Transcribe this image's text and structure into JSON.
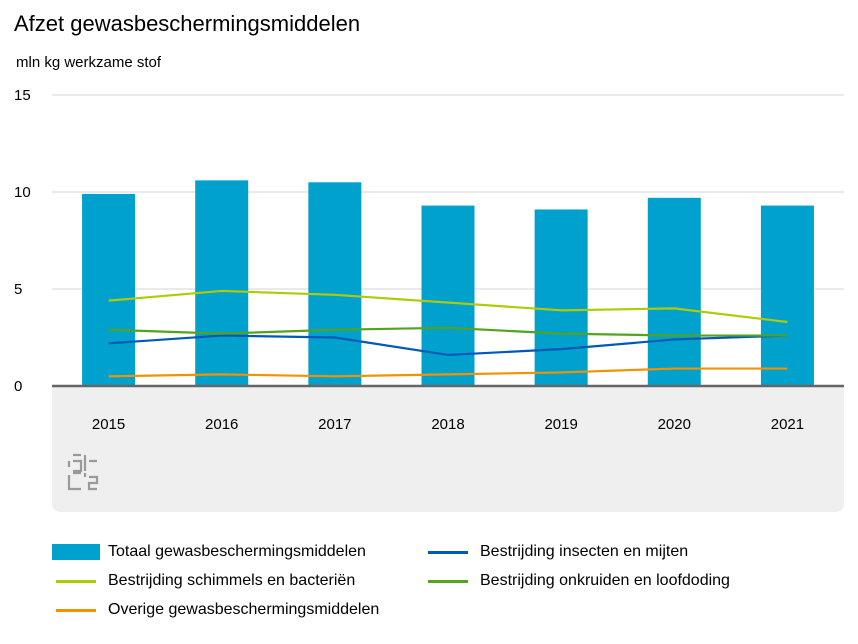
{
  "title": "Afzet gewasbeschermingsmiddelen",
  "unit": "mln kg werkzame stof",
  "logo": "cbs",
  "chart_data": {
    "type": "bar",
    "categories": [
      "2015",
      "2016",
      "2017",
      "2018",
      "2019",
      "2020",
      "2021"
    ],
    "ylim": [
      0,
      15
    ],
    "yticks": [
      "0",
      "5",
      "10",
      "15"
    ],
    "grid": true,
    "legend_position": "bottom",
    "series": [
      {
        "name": "Totaal gewasbeschermingsmiddelen",
        "kind": "bar",
        "color": "#00a1cd",
        "values": [
          9.9,
          10.6,
          10.5,
          9.3,
          9.1,
          9.7,
          9.3
        ]
      },
      {
        "name": "Bestrijding insecten en mijten",
        "kind": "line",
        "color": "#0058b8",
        "values": [
          2.2,
          2.6,
          2.5,
          1.6,
          1.9,
          2.4,
          2.6
        ]
      },
      {
        "name": "Bestrijding schimmels en bacteriën",
        "kind": "line",
        "color": "#afcb05",
        "values": [
          4.4,
          4.9,
          4.7,
          4.3,
          3.9,
          4.0,
          3.3
        ]
      },
      {
        "name": "Bestrijding onkruiden en loofdoding",
        "kind": "line",
        "color": "#53a31d",
        "values": [
          2.9,
          2.7,
          2.9,
          3.0,
          2.7,
          2.6,
          2.6
        ]
      },
      {
        "name": "Overige gewasbeschermingsmiddelen",
        "kind": "line",
        "color": "#f39200",
        "values": [
          0.5,
          0.6,
          0.5,
          0.6,
          0.7,
          0.9,
          0.9
        ]
      }
    ]
  }
}
